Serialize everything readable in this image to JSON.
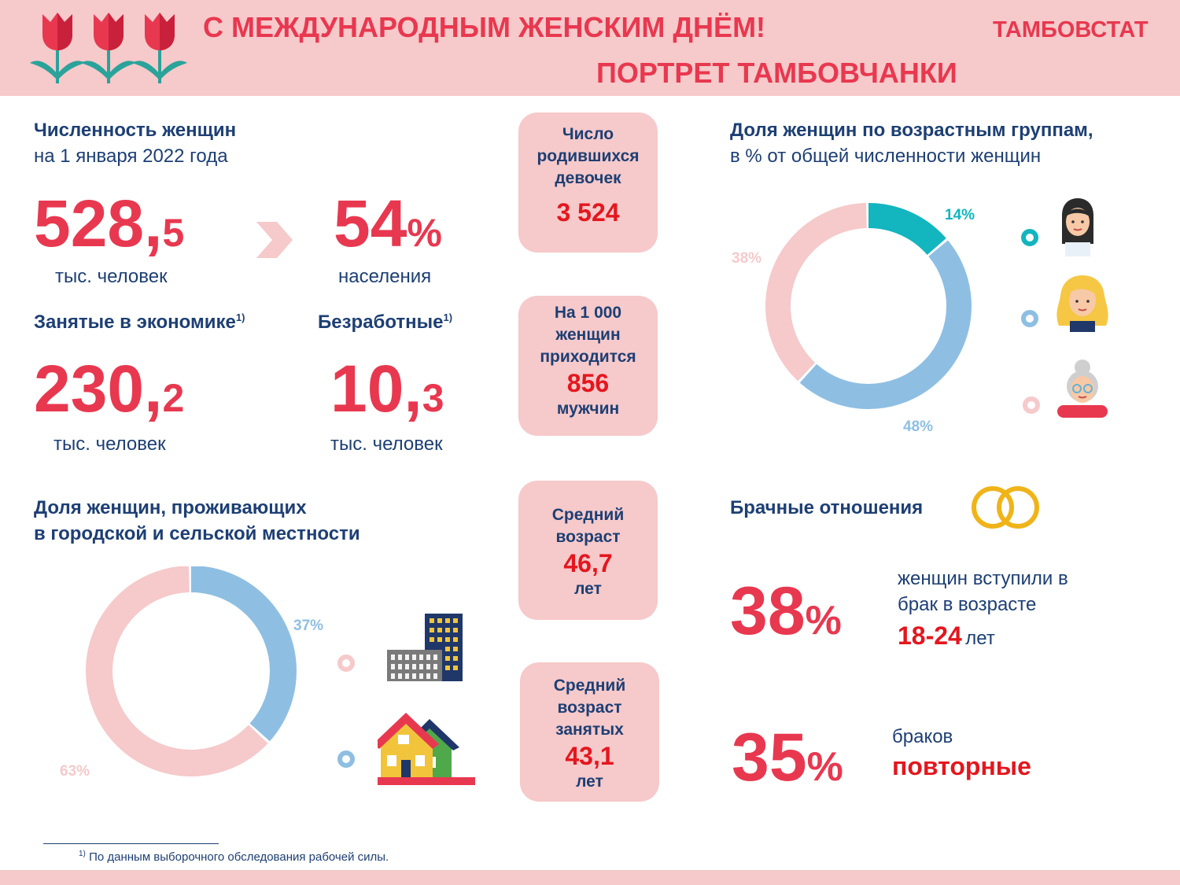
{
  "header": {
    "title": "С МЕЖДУНАРОДНЫМ ЖЕНСКИМ ДНЁМ!",
    "subtitle": "ПОРТРЕТ ТАМБОВЧАНКИ",
    "organization": "ТАМБОВСТАТ",
    "logo_icon": "tulips-icon"
  },
  "population": {
    "heading": "Численность женщин",
    "subheading": "на 1 января 2022 года",
    "value_main": "528,",
    "value_decimal": "5",
    "unit": "тыс. человек",
    "arrow_icon": "chevron-right-icon",
    "share_main": "54",
    "share_suffix": "%",
    "share_label": "населения"
  },
  "employment": {
    "employed_label": "Занятые в экономике",
    "employed_sup": "1)",
    "employed_main": "230,",
    "employed_decimal": "2",
    "employed_unit": "тыс. человек",
    "unemployed_label": "Безработные",
    "unemployed_sup": "1)",
    "unemployed_main": "10,",
    "unemployed_decimal": "3",
    "unemployed_unit": "тыс. человек"
  },
  "cards": {
    "born_girls": {
      "l1": "Число",
      "l2": "родившихся",
      "l3": "девочек",
      "value": "3 524"
    },
    "ratio": {
      "l1": "На 1 000",
      "l2": "женщин",
      "l3": "приходится",
      "value": "856",
      "l4": "мужчин"
    },
    "avg_age": {
      "l1": "Средний",
      "l2": "возраст",
      "value": "46,7",
      "l3": "лет"
    },
    "avg_age_employed": {
      "l1": "Средний",
      "l2": "возраст",
      "l3": "занятых",
      "value": "43,1",
      "l4": "лет"
    }
  },
  "residence": {
    "heading1": "Доля женщин, проживающих",
    "heading2": "в городской и сельской местности",
    "urban_icon": "city-buildings-icon",
    "rural_icon": "village-houses-icon"
  },
  "age_groups": {
    "heading1": "Доля женщин по возрастным группам,",
    "heading2": "в % от общей численности женщин",
    "icons": [
      "young-woman-icon",
      "middle-aged-woman-icon",
      "elderly-woman-icon"
    ]
  },
  "marriage": {
    "heading": "Брачные отношения",
    "rings_icon": "wedding-rings-icon",
    "stat1_main": "38",
    "stat1_suffix": "%",
    "stat1_l1": "женщин вступили в",
    "stat1_l2": "брак в возрасте",
    "stat1_age": "18-24",
    "stat1_years": "лет",
    "stat2_main": "35",
    "stat2_suffix": "%",
    "stat2_l1": "браков",
    "stat2_l2": "повторные"
  },
  "footnote": {
    "sup": "1)",
    "text": "По данным выборочного обследования рабочей силы."
  },
  "colors": {
    "accent_red": "#e8384f",
    "navy": "#1d3f74",
    "pink": "#f6c9ca",
    "light_blue": "#8ebfe3",
    "teal": "#13b5bf"
  },
  "chart_data": [
    {
      "type": "pie",
      "chart": "residence",
      "slices": [
        {
          "label": "37%",
          "value": 37,
          "color": "#8ebfe3"
        },
        {
          "label": "63%",
          "value": 63,
          "color": "#f6c9ca"
        }
      ]
    },
    {
      "type": "pie",
      "chart": "age_groups",
      "slices": [
        {
          "label": "14%",
          "value": 14,
          "color": "#13b5bf"
        },
        {
          "label": "48%",
          "value": 48,
          "color": "#8ebfe3"
        },
        {
          "label": "38%",
          "value": 38,
          "color": "#f6c9ca"
        }
      ]
    }
  ]
}
